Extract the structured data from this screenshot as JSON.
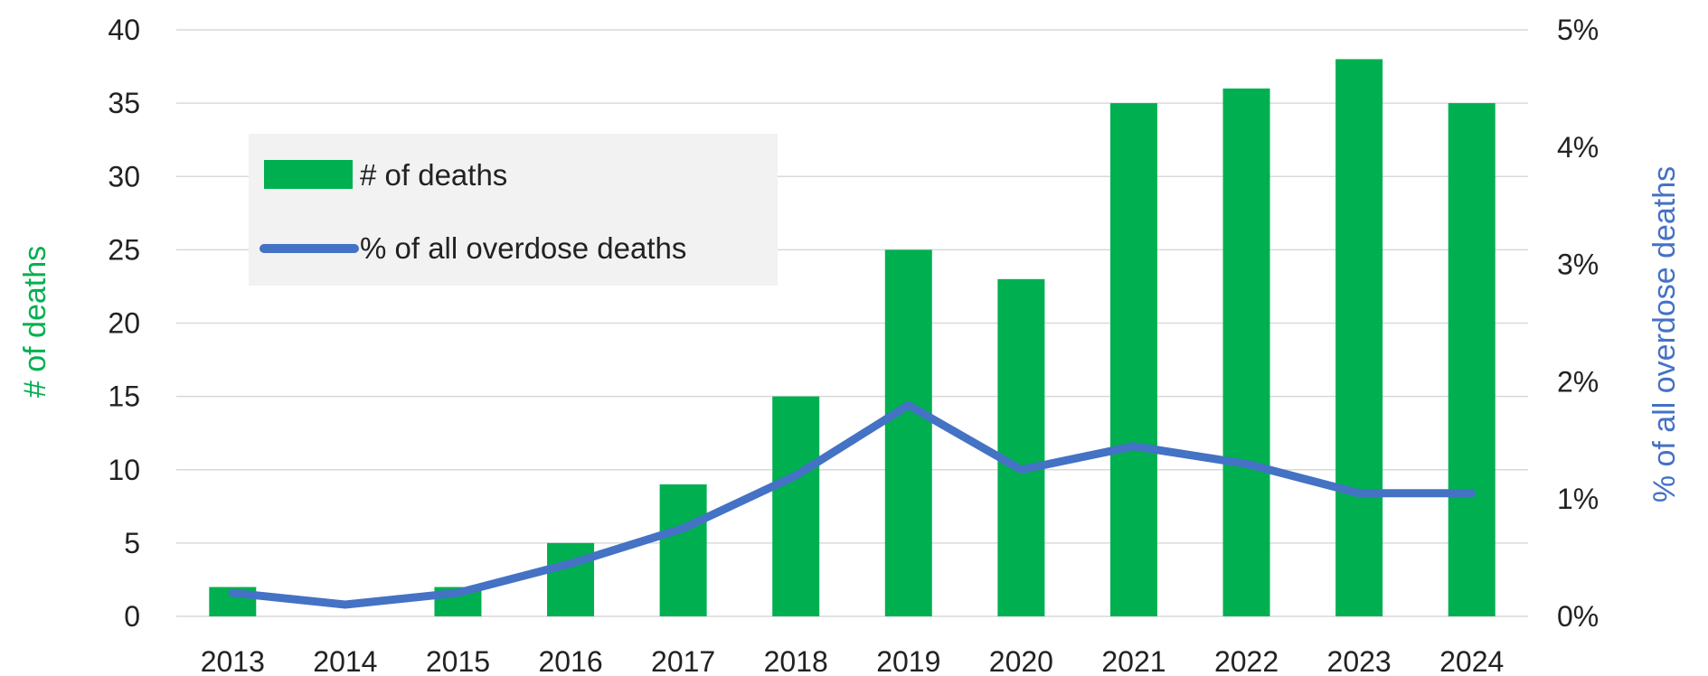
{
  "chart_data": {
    "type": "bar",
    "categories": [
      "2013",
      "2014",
      "2015",
      "2016",
      "2017",
      "2018",
      "2019",
      "2020",
      "2021",
      "2022",
      "2023",
      "2024"
    ],
    "series": [
      {
        "name": "# of deaths",
        "type": "bar",
        "axis": "left",
        "color": "#00b050",
        "values": [
          2,
          0,
          2,
          5,
          9,
          15,
          25,
          23,
          35,
          36,
          38,
          35
        ]
      },
      {
        "name": "% of all overdose deaths",
        "type": "line",
        "axis": "right",
        "color": "#4472c4",
        "values": [
          0.2,
          0.1,
          0.2,
          0.45,
          0.75,
          1.2,
          1.8,
          1.25,
          1.45,
          1.3,
          1.05,
          1.05
        ]
      }
    ],
    "ylabel": "# of deaths",
    "ylabel_color": "#00b050",
    "ylim": [
      0,
      40
    ],
    "yticks": [
      "0",
      "5",
      "10",
      "15",
      "20",
      "25",
      "30",
      "35",
      "40"
    ],
    "y2label": "% of all overdose deaths",
    "y2label_color": "#4472c4",
    "y2lim": [
      0,
      5
    ],
    "y2ticks": [
      "0%",
      "1%",
      "2%",
      "3%",
      "4%",
      "5%"
    ],
    "grid": true,
    "legend_placement": "upper-left, inside plot",
    "legend_background": "#f2f2f2"
  }
}
